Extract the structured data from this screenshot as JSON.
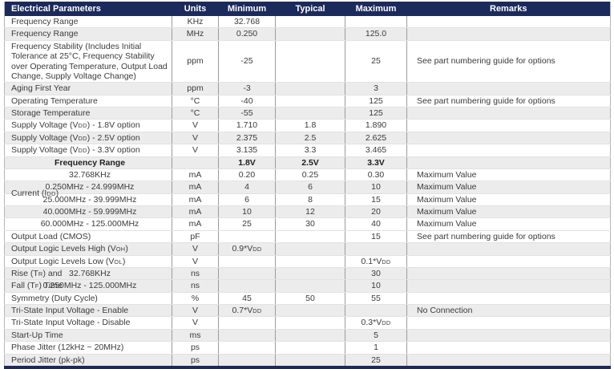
{
  "colors": {
    "header_bg": "#1b2a5c",
    "header_text": "#ffffff",
    "stripe": "#ececec",
    "grid_line": "#9b9b9b",
    "row_line": "#e2e2e2",
    "text": "#3b3b3b"
  },
  "table": {
    "columns": [
      {
        "label": "Electrical Parameters",
        "align": "left"
      },
      {
        "label": "Units",
        "align": "center"
      },
      {
        "label": "Minimum",
        "align": "center"
      },
      {
        "label": "Typical",
        "align": "center"
      },
      {
        "label": "Maximum",
        "align": "center"
      },
      {
        "label": "Remarks",
        "align": "center"
      }
    ],
    "rows": [
      {
        "param": "Frequency Range",
        "units": "KHz",
        "min": "32.768",
        "typ": "",
        "max": "",
        "remarks": "",
        "shade": false
      },
      {
        "param": "Frequency Range",
        "units": "MHz",
        "min": "0.250",
        "typ": "",
        "max": "125.0",
        "remarks": "",
        "shade": true
      },
      {
        "param": "Frequency Stability (Includes Initial Tolerance at 25°C, Frequency Stability over Operating Temperature, Output Load Change, Supply Voltage Change)",
        "units": "ppm",
        "min": "-25",
        "typ": "",
        "max": "25",
        "remarks": "See part numbering guide for options",
        "shade": false
      },
      {
        "param": "Aging First Year",
        "units": "ppm",
        "min": "-3",
        "typ": "",
        "max": "3",
        "remarks": "",
        "shade": true
      },
      {
        "param": "Operating Temperature",
        "units": "°C",
        "min": "-40",
        "typ": "",
        "max": "125",
        "remarks": "See part numbering guide for options",
        "shade": false
      },
      {
        "param": "Storage Temperature",
        "units": "°C",
        "min": "-55",
        "typ": "",
        "max": "125",
        "remarks": "",
        "shade": true
      },
      {
        "param": "Supply Voltage (V<sub>DD</sub>) - 1.8V option",
        "units": "V",
        "min": "1.710",
        "typ": "1.8",
        "max": "1.890",
        "remarks": "",
        "shade": false
      },
      {
        "param": "Supply Voltage (V<sub>DD</sub>) - 2.5V option",
        "units": "V",
        "min": "2.375",
        "typ": "2.5",
        "max": "2.625",
        "remarks": "",
        "shade": true
      },
      {
        "param": "Supply Voltage (V<sub>DD</sub>) - 3.3V option",
        "units": "V",
        "min": "3.135",
        "typ": "3.3",
        "max": "3.465",
        "remarks": "",
        "shade": false
      },
      {
        "param": "Frequency Range",
        "units": "",
        "min": "1.8V",
        "typ": "2.5V",
        "max": "3.3V",
        "remarks": "",
        "shade": true,
        "bold": true,
        "param_center": true
      },
      {
        "param": "32.768KHz",
        "units": "mA",
        "min": "0.20",
        "typ": "0.25",
        "max": "0.30",
        "remarks": "Maximum Value",
        "shade": false,
        "param_center": true
      },
      {
        "param": "0.250MHz - 24.999MHz",
        "units": "mA",
        "min": "4",
        "typ": "6",
        "max": "10",
        "remarks": "Maximum Value",
        "shade": true,
        "param_center": true,
        "group_label": "Current (I<sub>DD</sub>)",
        "group_straddle": true
      },
      {
        "param": "25.000MHz - 39.999MHz",
        "units": "mA",
        "min": "6",
        "typ": "8",
        "max": "15",
        "remarks": "Maximum Value",
        "shade": false,
        "param_center": true
      },
      {
        "param": "40.000MHz - 59.999MHz",
        "units": "mA",
        "min": "10",
        "typ": "12",
        "max": "20",
        "remarks": "Maximum Value",
        "shade": true,
        "param_center": true
      },
      {
        "param": "60.000MHz - 125.000MHz",
        "units": "mA",
        "min": "25",
        "typ": "30",
        "max": "40",
        "remarks": "Maximum Value",
        "shade": false,
        "param_center": true
      },
      {
        "param": "Output Load (CMOS)",
        "units": "pF",
        "min": "",
        "typ": "",
        "max": "15",
        "remarks": "See part numbering guide for options",
        "shade": false
      },
      {
        "param": "Output Logic Levels High (V<sub>OH</sub>)",
        "units": "V",
        "min": "0.9*V<sub>DD</sub>",
        "typ": "",
        "max": "",
        "remarks": "",
        "shade": true
      },
      {
        "param": "Output Logic Levels Low (V<sub>OL</sub>)",
        "units": "V",
        "min": "",
        "typ": "",
        "max": "0.1*V<sub>DD</sub>",
        "remarks": "",
        "shade": false
      },
      {
        "param": "32.768KHz",
        "units": "ns",
        "min": "",
        "typ": "",
        "max": "30",
        "remarks": "",
        "shade": true,
        "param_center": true,
        "group_label": "Rise (T<sub>R</sub>) and"
      },
      {
        "param": "0.250MHz - 125.000MHz",
        "units": "ns",
        "min": "",
        "typ": "",
        "max": "10",
        "remarks": "",
        "shade": true,
        "param_center": true,
        "group_label": "Fall (T<sub>F</sub>) Time"
      },
      {
        "param": "Symmetry (Duty Cycle)",
        "units": "%",
        "min": "45",
        "typ": "50",
        "max": "55",
        "remarks": "",
        "shade": false
      },
      {
        "param": "Tri-State Input Voltage - Enable",
        "units": "V",
        "min": "0.7*V<sub>DD</sub>",
        "typ": "",
        "max": "",
        "remarks": "No Connection",
        "shade": true
      },
      {
        "param": "Tri-State Input Voltage - Disable",
        "units": "V",
        "min": "",
        "typ": "",
        "max": "0.3*V<sub>DD</sub>",
        "remarks": "",
        "shade": false
      },
      {
        "param": "Start-Up Time",
        "units": "ms",
        "min": "",
        "typ": "",
        "max": "5",
        "remarks": "",
        "shade": true
      },
      {
        "param": "Phase Jitter (12kHz ~ 20MHz)",
        "units": "ps",
        "min": "",
        "typ": "",
        "max": "1",
        "remarks": "",
        "shade": false
      },
      {
        "param": "Period Jitter (pk-pk)",
        "units": "ps",
        "min": "",
        "typ": "",
        "max": "25",
        "remarks": "",
        "shade": true
      }
    ]
  }
}
